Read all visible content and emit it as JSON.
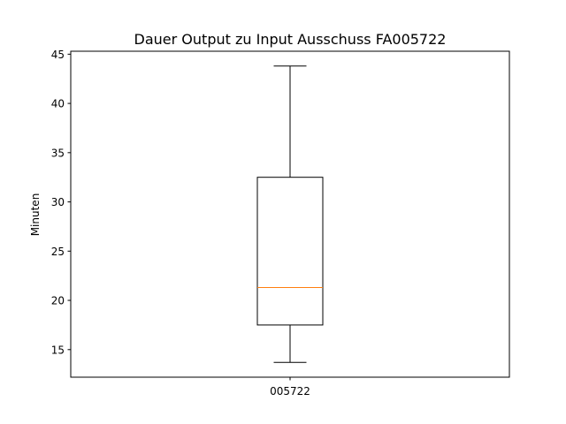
{
  "chart_data": {
    "type": "box",
    "title": "Dauer Output zu Input Ausschuss FA005722",
    "xlabel": "",
    "ylabel": "Minuten",
    "ylim": [
      12.2,
      45.3
    ],
    "yticks": [
      15,
      20,
      25,
      30,
      35,
      40,
      45
    ],
    "grid": false,
    "categories": [
      "005722"
    ],
    "boxes": [
      {
        "category": "005722",
        "whisker_low": 13.7,
        "q1": 17.5,
        "median": 21.3,
        "q3": 32.5,
        "whisker_high": 43.8
      }
    ],
    "colors": {
      "box": "#000000",
      "median": "#ff7f0e"
    }
  }
}
